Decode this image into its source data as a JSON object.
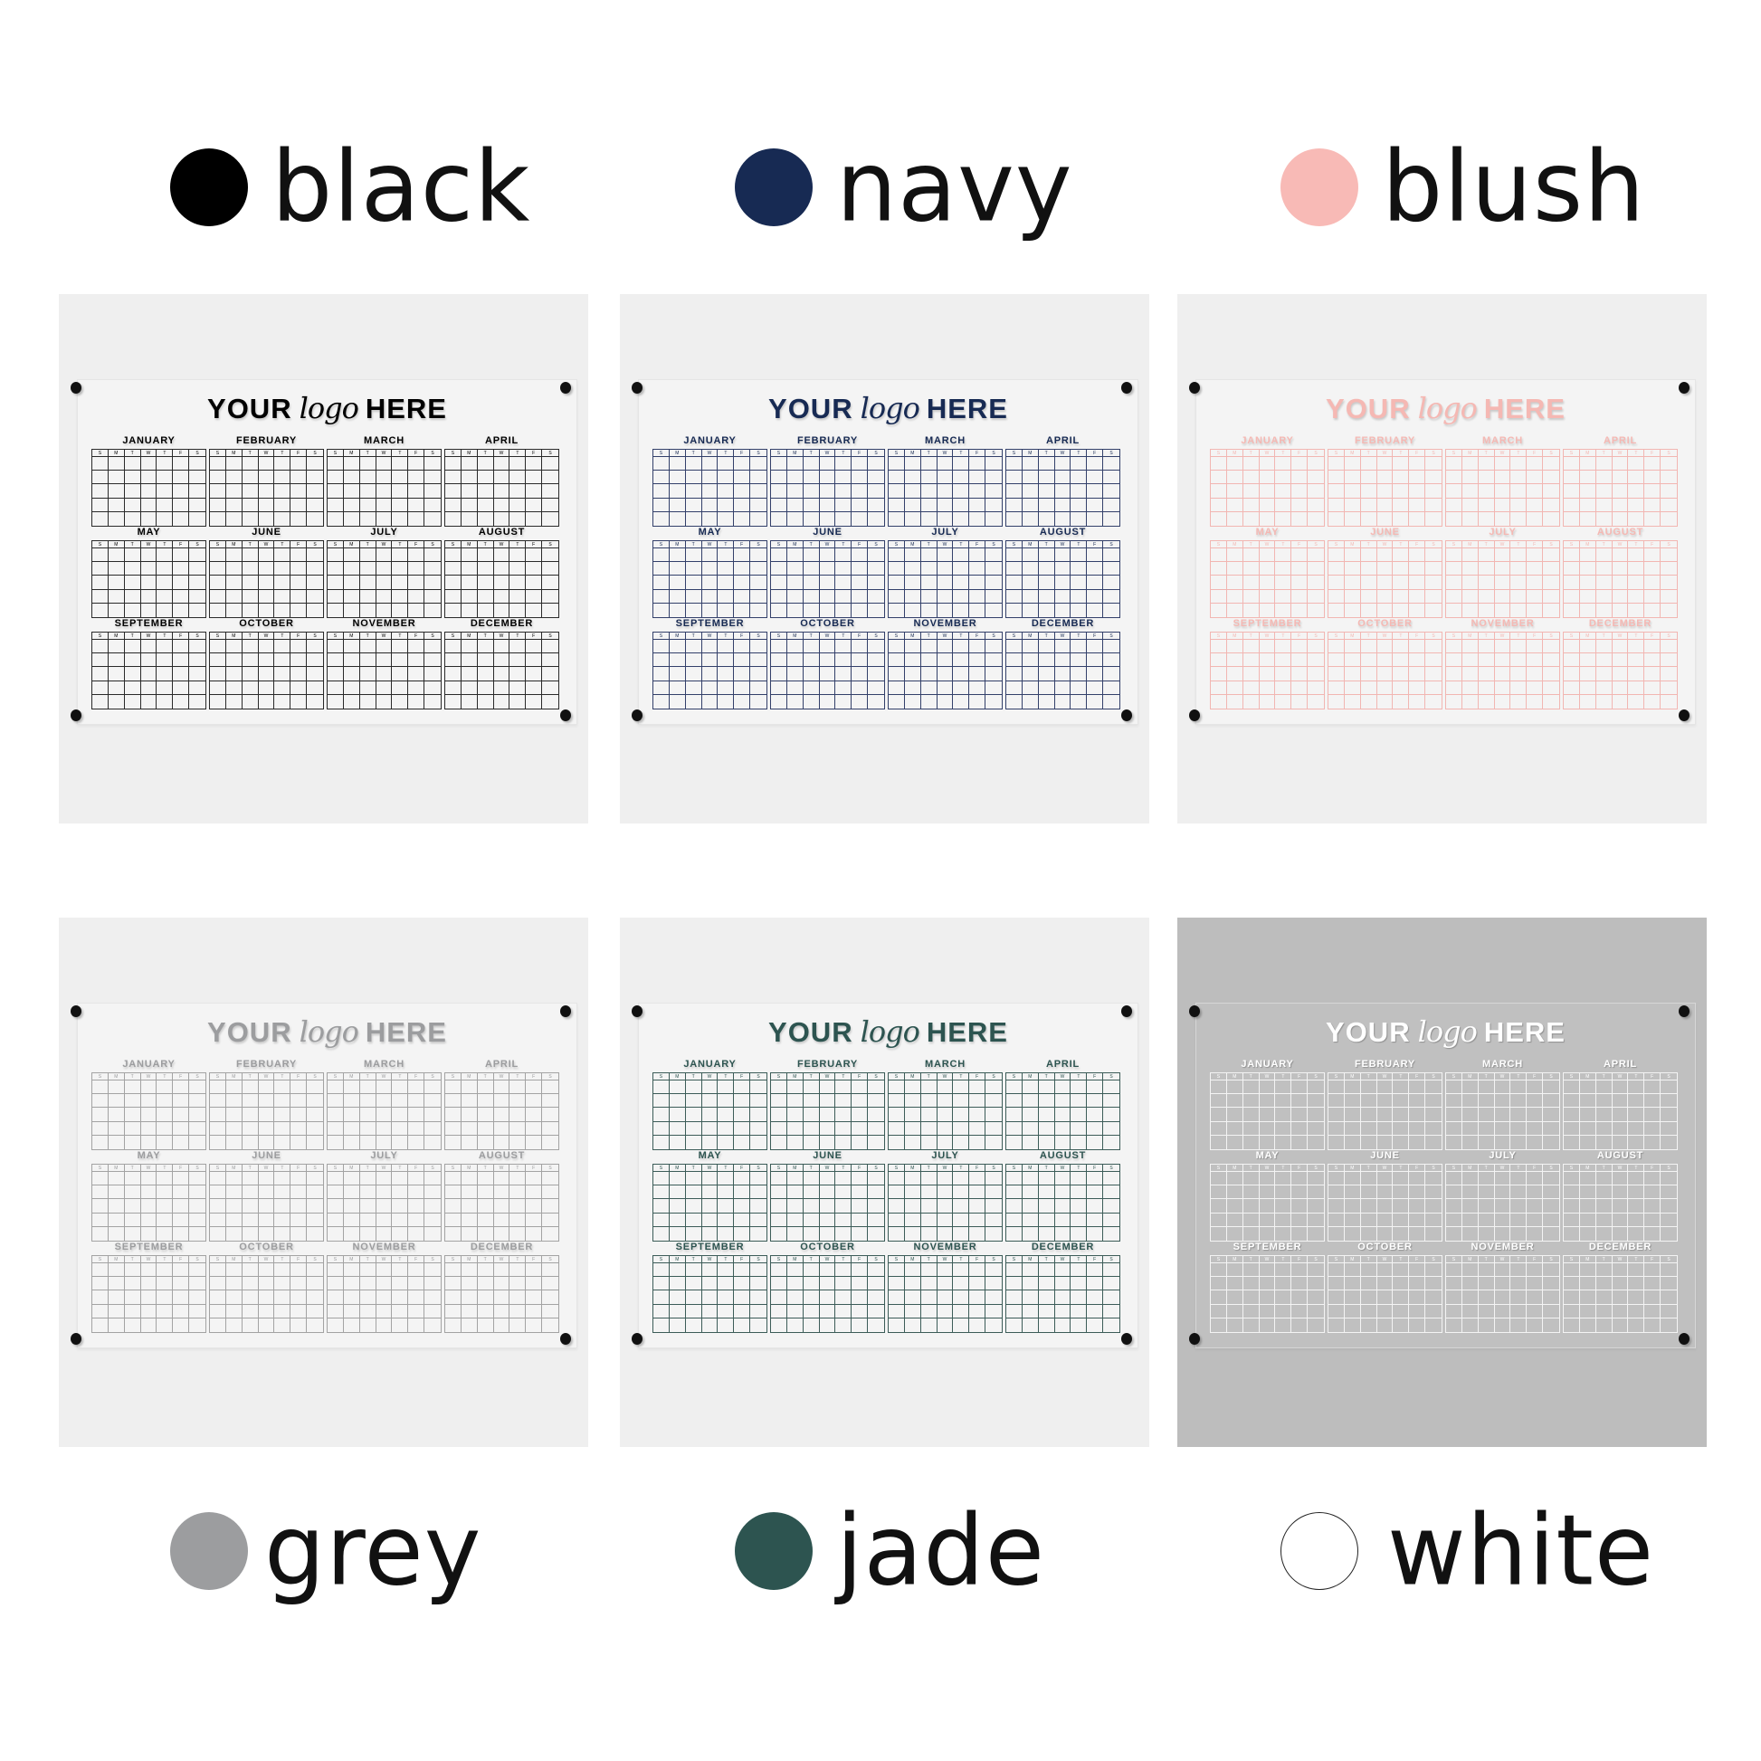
{
  "weekday_letters": [
    "S",
    "M",
    "T",
    "W",
    "T",
    "F",
    "S"
  ],
  "board": {
    "title_left": "YOUR",
    "title_script": "logo",
    "title_right": "HERE",
    "months": [
      "JANUARY",
      "FEBRUARY",
      "MARCH",
      "APRIL",
      "MAY",
      "JUNE",
      "JULY",
      "AUGUST",
      "SEPTEMBER",
      "OCTOBER",
      "NOVEMBER",
      "DECEMBER"
    ]
  },
  "variants": [
    {
      "name": "black",
      "color": "#000000",
      "line_color": "#2a2a2a",
      "panel_bg": "#efefef"
    },
    {
      "name": "navy",
      "color": "#172a53",
      "line_color": "#33406a",
      "panel_bg": "#efefef"
    },
    {
      "name": "blush",
      "color": "#f5b8b3",
      "line_color": "#f2b6b2",
      "panel_bg": "#efefef"
    },
    {
      "name": "grey",
      "color": "#9c9d9f",
      "line_color": "#a3a3a3",
      "panel_bg": "#efefef"
    },
    {
      "name": "jade",
      "color": "#2d5450",
      "line_color": "#3c5c58",
      "panel_bg": "#efefef"
    },
    {
      "name": "white",
      "color": "#ffffff",
      "line_color": "#f4f4f4",
      "panel_bg": "#bdbdbd"
    }
  ]
}
